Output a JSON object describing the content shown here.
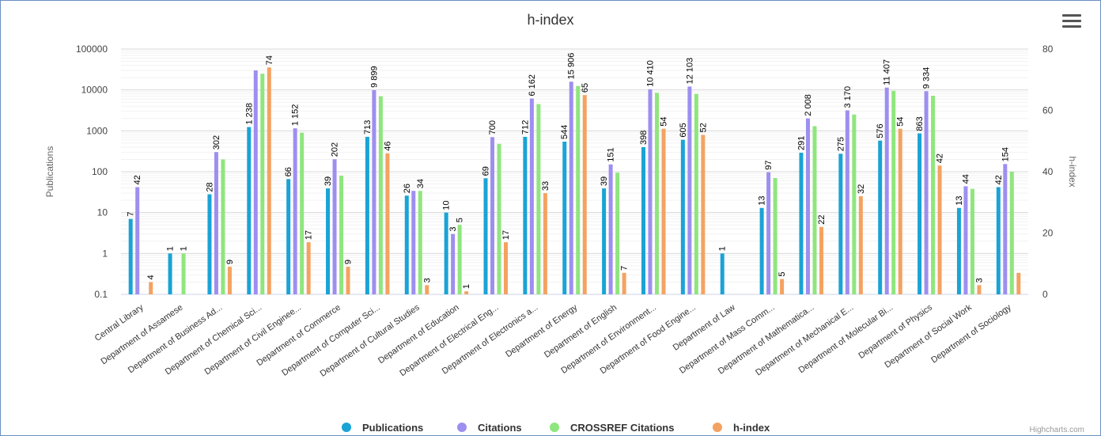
{
  "chart_data": {
    "type": "bar",
    "title": "h-index",
    "ylabel_left": "Publications",
    "ylabel_right": "h-index",
    "y_left_scale": "log",
    "y_left_range": [
      0.1,
      100000
    ],
    "y_left_ticks": [
      "0.1",
      "1",
      "10",
      "100",
      "1000",
      "10000",
      "100000"
    ],
    "y_right_range": [
      0,
      80
    ],
    "y_right_ticks": [
      "0",
      "20",
      "40",
      "60",
      "80"
    ],
    "grid": true,
    "legend_position": "bottom-center",
    "credit": "Highcharts.com",
    "categories": [
      "Central Library",
      "Department of Assamese",
      "Department of Business Ad...",
      "Department of Chemical Sci...",
      "Department of Civil Enginee...",
      "Department of Commerce",
      "Department of Computer Sci...",
      "Department of Cultural Studies",
      "Department of Education",
      "Department of Electrical Eng...",
      "Department of Electronics a...",
      "Department of Energy",
      "Department of English",
      "Department of Environment...",
      "Department of Food Engine...",
      "Department of Law",
      "Department of Mass Comm...",
      "Department of Mathematica...",
      "Department of Mechanical E...",
      "Department of Molecular Bi...",
      "Department of Physics",
      "Department of Social Work",
      "Department of Sociology"
    ],
    "series": [
      {
        "name": "Publications",
        "color": "#1aa3d6",
        "axis": "left",
        "values": [
          7,
          1,
          28,
          1238,
          66,
          39,
          713,
          26,
          10,
          69,
          712,
          544,
          39,
          398,
          605,
          1,
          13,
          291,
          275,
          576,
          863,
          13,
          42
        ],
        "labels": [
          "7",
          "1",
          "28",
          "1 238",
          "66",
          "39",
          "713",
          "26",
          "10",
          "69",
          "712",
          "544",
          "39",
          "398",
          "605",
          "1",
          "13",
          "291",
          "275",
          "576",
          "863",
          "13",
          "42"
        ]
      },
      {
        "name": "Citations",
        "color": "#9d8ff0",
        "axis": "left",
        "values": [
          42,
          null,
          302,
          30000,
          1152,
          202,
          9899,
          34,
          3,
          700,
          6162,
          15906,
          151,
          10410,
          12103,
          null,
          97,
          2008,
          3170,
          11407,
          9334,
          44,
          154
        ],
        "labels": [
          "42",
          "",
          "302",
          "",
          "1 152",
          "202",
          "9 899",
          "",
          "3",
          "700",
          "6 162",
          "15 906",
          "151",
          "10 410",
          "12 103",
          "",
          "97",
          "2 008",
          "3 170",
          "11 407",
          "9 334",
          "44",
          "154"
        ]
      },
      {
        "name": "CROSSREF Citations",
        "color": "#8fe67e",
        "axis": "left",
        "values": [
          null,
          1,
          200,
          25000,
          900,
          80,
          7000,
          34,
          5,
          480,
          4500,
          12500,
          95,
          8500,
          8000,
          null,
          70,
          1300,
          2500,
          9500,
          7200,
          38,
          100
        ],
        "labels": [
          "",
          "1",
          "",
          "",
          "",
          "",
          "",
          "34",
          "5",
          "",
          "",
          "",
          "",
          "",
          "",
          "",
          "",
          "",
          "",
          "",
          "",
          "",
          ""
        ]
      },
      {
        "name": "h-index",
        "color": "#f4a261",
        "axis": "right",
        "values": [
          4,
          null,
          9,
          74,
          17,
          9,
          46,
          3,
          1,
          17,
          33,
          65,
          7,
          54,
          52,
          null,
          5,
          22,
          32,
          54,
          42,
          3,
          7
        ],
        "labels": [
          "4",
          "",
          "9",
          "74",
          "17",
          "9",
          "46",
          "3",
          "1",
          "17",
          "33",
          "65",
          "7",
          "54",
          "52",
          "",
          "5",
          "22",
          "32",
          "54",
          "42",
          "3",
          ""
        ]
      }
    ]
  }
}
